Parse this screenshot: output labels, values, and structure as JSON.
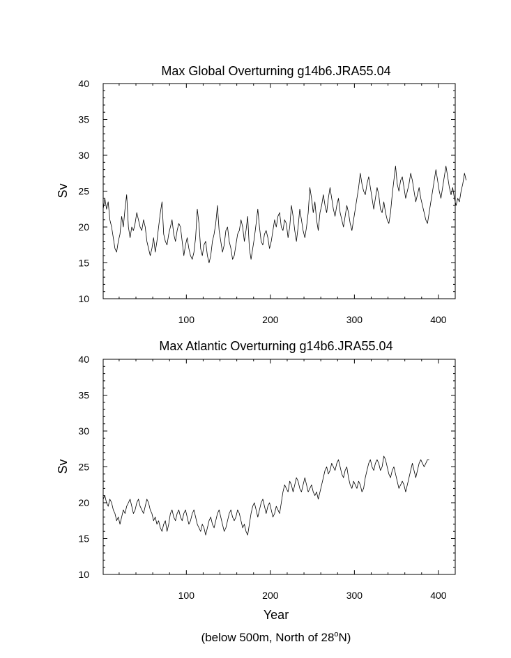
{
  "chart_data": [
    {
      "type": "line",
      "title": "Max Global Overturning g14b6.JRA55.04",
      "xlabel": "",
      "ylabel": "Sv",
      "xlim": [
        1,
        420
      ],
      "ylim": [
        10,
        40
      ],
      "xticks": [
        100,
        200,
        300,
        400
      ],
      "yticks": [
        10,
        15,
        20,
        25,
        30,
        35,
        40
      ],
      "grid": false,
      "legend": "none",
      "series": [
        {
          "x_start": 1,
          "x_step": 2,
          "values": [
            22.5,
            24,
            22.5,
            23.5,
            21,
            20,
            18.5,
            17,
            16.5,
            18,
            19,
            21.5,
            20,
            22.5,
            24.5,
            20,
            18.5,
            20,
            19.5,
            20.5,
            22,
            21,
            20,
            19.5,
            21,
            20,
            18,
            17,
            16,
            17,
            18.5,
            16.5,
            18,
            20,
            22,
            23.5,
            19,
            18,
            17.5,
            19,
            20,
            21,
            19,
            18,
            19.5,
            20.5,
            20,
            18,
            16,
            17.5,
            18.5,
            17,
            16,
            15.5,
            16.5,
            18.5,
            22.5,
            20.5,
            17,
            16,
            17.5,
            18,
            16,
            15,
            16,
            18,
            19,
            20.5,
            23,
            19.5,
            18,
            16.5,
            17.5,
            19.5,
            20,
            18,
            17,
            15.5,
            16,
            17.5,
            19,
            19.5,
            21,
            20,
            18,
            19.5,
            21.5,
            17,
            15.5,
            17,
            18.5,
            20.5,
            22.5,
            20,
            18,
            17.5,
            19,
            19.5,
            18.5,
            17,
            18,
            19.5,
            21,
            20,
            21.5,
            22,
            20,
            19.5,
            21,
            20.5,
            18.5,
            20,
            23,
            21.5,
            19.5,
            18,
            20,
            22.5,
            21,
            19.5,
            18.5,
            20,
            22,
            25.5,
            24,
            22,
            23.5,
            21,
            19.5,
            22,
            23,
            24.5,
            23,
            22,
            24,
            25.5,
            24,
            22.5,
            21.5,
            23,
            24,
            22,
            21,
            20,
            21.5,
            23,
            22,
            20.5,
            19.5,
            21,
            22.5,
            24,
            25.5,
            27.5,
            26,
            25,
            24.5,
            26,
            27,
            25.5,
            24,
            22.5,
            24,
            25.5,
            24.5,
            22.5,
            22,
            23.5,
            22,
            21,
            20.5,
            22,
            24.5,
            26.5,
            28.5,
            26,
            25,
            26.5,
            27,
            25.5,
            24,
            25,
            26,
            27.5,
            26.5,
            25,
            23.5,
            24.5,
            25.5,
            24,
            23,
            22,
            21,
            20.5,
            22,
            23.5,
            25,
            26.5,
            28,
            26.5,
            25,
            24,
            25.5,
            27,
            28.5,
            27,
            25.5,
            24.5,
            25.5,
            24,
            23,
            24,
            23.5,
            25,
            26,
            27.5,
            26.5
          ]
        }
      ]
    },
    {
      "type": "line",
      "title": "Max Atlantic Overturning g14b6.JRA55.04",
      "xlabel": "Year",
      "ylabel": "Sv",
      "xlim": [
        1,
        420
      ],
      "ylim": [
        10,
        40
      ],
      "xticks": [
        100,
        200,
        300,
        400
      ],
      "yticks": [
        10,
        15,
        20,
        25,
        30,
        35,
        40
      ],
      "grid": false,
      "legend": "none",
      "series": [
        {
          "x_start": 1,
          "x_step": 2,
          "values": [
            20.5,
            21,
            20,
            19.5,
            20.5,
            20,
            19,
            18.5,
            17.5,
            18,
            17,
            18,
            19,
            18.5,
            19.5,
            20,
            20.5,
            19.5,
            18.5,
            19,
            20,
            20.5,
            19.5,
            19,
            18.5,
            19.5,
            20.5,
            20,
            19,
            18.5,
            17.5,
            18,
            17,
            17.5,
            16.5,
            16,
            17,
            17.5,
            16,
            17,
            18.5,
            19,
            18,
            17.5,
            18.5,
            19,
            18,
            17.5,
            18.5,
            19,
            18,
            17,
            17.5,
            18.5,
            19,
            18,
            17,
            16.5,
            16,
            17,
            16.5,
            15.5,
            16.5,
            17.5,
            18,
            17,
            16.5,
            17.5,
            18.5,
            19,
            18,
            17,
            16,
            16.5,
            17.5,
            18.5,
            19,
            18,
            17.5,
            18,
            19,
            18.5,
            17.5,
            16.5,
            17,
            16,
            15.5,
            17,
            18.5,
            19.5,
            20,
            19,
            18,
            19,
            20,
            20.5,
            19.5,
            18.5,
            19.5,
            20,
            19,
            18,
            18.5,
            19.5,
            19,
            18.5,
            20,
            21.5,
            22.5,
            22,
            21.5,
            23,
            22.5,
            21.5,
            22.5,
            23.5,
            23,
            22,
            21.5,
            22.5,
            23.5,
            22.5,
            21.5,
            22,
            22.5,
            21.5,
            21,
            21.5,
            20.5,
            21.5,
            22.5,
            23.5,
            24.5,
            25,
            24,
            24.5,
            25.5,
            25,
            24.5,
            25.5,
            26,
            25,
            24,
            23.5,
            24.5,
            25,
            23.5,
            22.5,
            22,
            23,
            22.5,
            22,
            23,
            22.5,
            21.5,
            22,
            23.5,
            24.5,
            25.5,
            26,
            25,
            24.5,
            25.5,
            26,
            25.5,
            24.5,
            25,
            26.5,
            26,
            25,
            24,
            23.5,
            24.5,
            25,
            24,
            23,
            22,
            22.5,
            23,
            22.5,
            21.5,
            22.5,
            23.5,
            24.5,
            25.5,
            24.5,
            23.5,
            24.5,
            25.5,
            26,
            25.5,
            25,
            25.5,
            26,
            26
          ]
        }
      ]
    }
  ],
  "caption_main": "(below 500m, North of 28",
  "caption_super": "o",
  "caption_end": "N)"
}
